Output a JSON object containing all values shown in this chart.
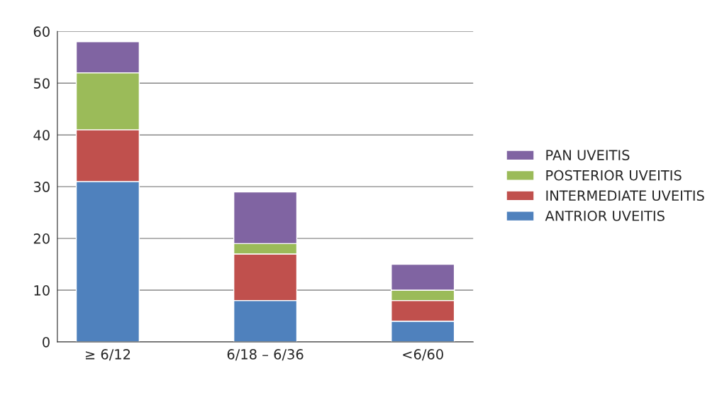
{
  "chart_data": {
    "type": "bar",
    "stacked": true,
    "categories": [
      "≥ 6/12",
      "6/18 – 6/36",
      "<6/60"
    ],
    "series": [
      {
        "name": "ANTRIOR UVEITIS",
        "color": "#4f81bd",
        "values": [
          31,
          8,
          4
        ]
      },
      {
        "name": "INTERMEDIATE UVEITIS",
        "color": "#c0504d",
        "values": [
          10,
          9,
          4
        ]
      },
      {
        "name": "POSTERIOR UVEITIS",
        "color": "#9bbb59",
        "values": [
          11,
          2,
          2
        ]
      },
      {
        "name": "PAN UVEITIS",
        "color": "#8064a2",
        "values": [
          6,
          10,
          5
        ]
      }
    ],
    "ylim": [
      0,
      60
    ],
    "yticks": [
      0,
      10,
      20,
      30,
      40,
      50,
      60
    ],
    "grid": "y",
    "legend": "right"
  }
}
